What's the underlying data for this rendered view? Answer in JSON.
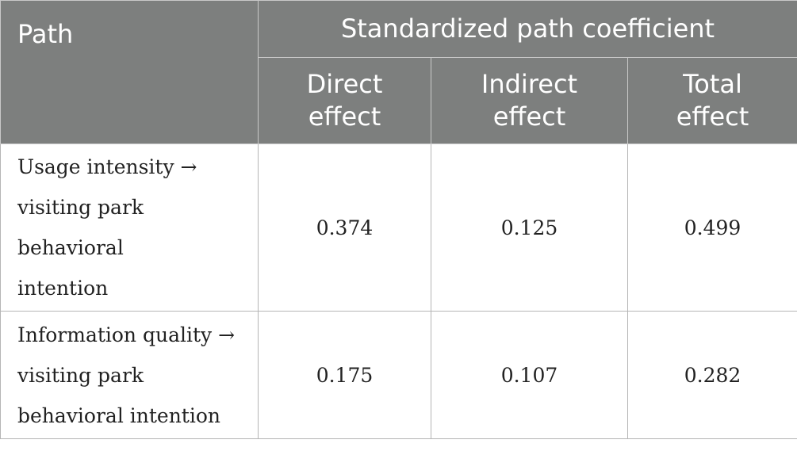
{
  "table": {
    "header": {
      "path": "Path",
      "group": "Standardized path coefficient",
      "columns": [
        "Direct effect",
        "Indirect effect",
        "Total effect"
      ]
    },
    "rows": [
      {
        "path": "Usage intensity → visiting park behavioral intention",
        "direct": "0.374",
        "indirect": "0.125",
        "total": "0.499"
      },
      {
        "path": "Information quality → visiting park behavioral intention",
        "direct": "0.175",
        "indirect": "0.107",
        "total": "0.282"
      }
    ]
  }
}
